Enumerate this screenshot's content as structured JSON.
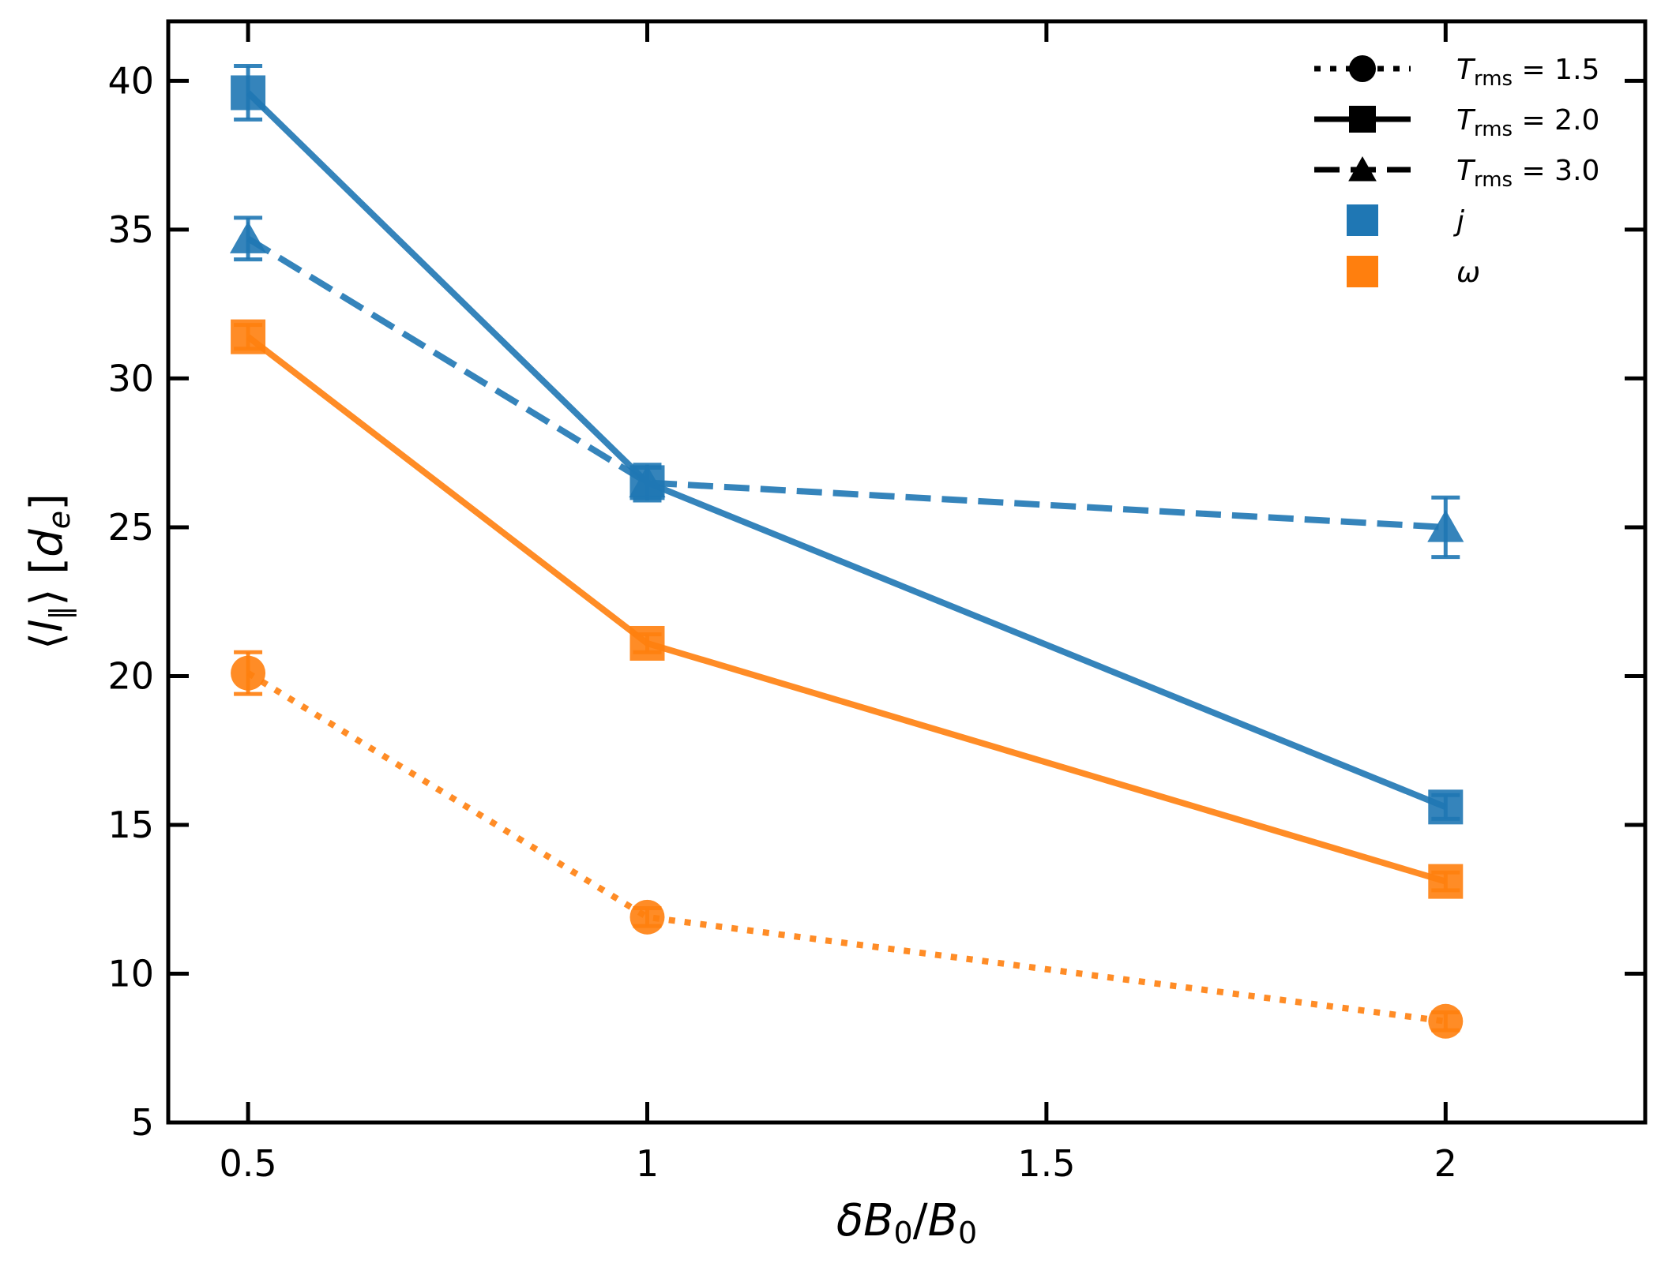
{
  "chart_data": {
    "type": "line",
    "title": "",
    "xlabel": {
      "delta": "δ",
      "var": "B",
      "sub": "0",
      "slash": "/",
      "var2": "B",
      "sub2": "0"
    },
    "ylabel": {
      "open": "⟨",
      "var": "l",
      "sub": "‖",
      "close": "⟩",
      "unit_open": "[",
      "unit_var": "d",
      "unit_sub": "e",
      "unit_close": "]"
    },
    "xlim": [
      0.4,
      2.25
    ],
    "ylim": [
      5,
      42
    ],
    "xticks": [
      0.5,
      1,
      1.5,
      2
    ],
    "xtick_labels": [
      "0.5",
      "1",
      "1.5",
      "2"
    ],
    "yticks": [
      5,
      10,
      15,
      20,
      25,
      30,
      35,
      40
    ],
    "ytick_labels": [
      "5",
      "10",
      "15",
      "20",
      "25",
      "30",
      "35",
      "40"
    ],
    "colors": {
      "j": "#1f77b4",
      "omega": "#ff7f0e",
      "axis": "#000000"
    },
    "series": [
      {
        "name": "j, T_rms = 2.0",
        "quantity": "j",
        "style": "solid",
        "marker": "square",
        "x": [
          0.5,
          1,
          2
        ],
        "y": [
          39.6,
          26.5,
          15.6
        ],
        "yerr": [
          0.9,
          0.6,
          0.4
        ]
      },
      {
        "name": "j, T_rms = 3.0",
        "quantity": "j",
        "style": "dashed",
        "marker": "triangle",
        "x": [
          0.5,
          1,
          2
        ],
        "y": [
          34.7,
          26.5,
          25.0
        ],
        "yerr": [
          0.7,
          0.5,
          1.0
        ]
      },
      {
        "name": "omega, T_rms = 2.0",
        "quantity": "omega",
        "style": "solid",
        "marker": "square",
        "x": [
          0.5,
          1,
          2
        ],
        "y": [
          31.4,
          21.1,
          13.1
        ],
        "yerr": [
          0.4,
          0.3,
          0.3
        ]
      },
      {
        "name": "omega, T_rms = 1.5",
        "quantity": "omega",
        "style": "dotted",
        "marker": "circle",
        "x": [
          0.5,
          1,
          2
        ],
        "y": [
          20.1,
          11.9,
          8.4
        ],
        "yerr": [
          0.7,
          0.3,
          0.3
        ]
      }
    ],
    "legend": {
      "placement": "top-right",
      "entries": [
        {
          "kind": "line",
          "style": "dotted",
          "marker": "circle",
          "var": "T",
          "sub": "rms",
          "value": " = 1.5"
        },
        {
          "kind": "line",
          "style": "solid",
          "marker": "square",
          "var": "T",
          "sub": "rms",
          "value": " = 2.0"
        },
        {
          "kind": "line",
          "style": "dashed",
          "marker": "triangle",
          "var": "T",
          "sub": "rms",
          "value": " = 3.0"
        },
        {
          "kind": "patch",
          "color": "j",
          "label": "j"
        },
        {
          "kind": "patch",
          "color": "omega",
          "label": "ω"
        }
      ]
    }
  }
}
